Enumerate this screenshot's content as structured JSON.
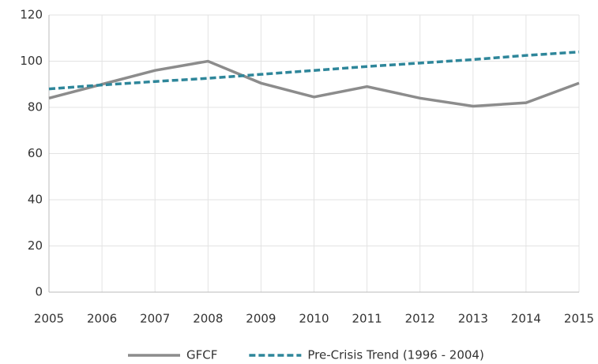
{
  "chart_data": {
    "type": "line",
    "x": [
      2005,
      2006,
      2007,
      2008,
      2009,
      2010,
      2011,
      2012,
      2013,
      2014,
      2015
    ],
    "series": [
      {
        "name": "GFCF",
        "color": "#8c8c8c",
        "dashed": false,
        "values": [
          84,
          90,
          96,
          100,
          90.5,
          84.5,
          89,
          84,
          80.5,
          82,
          90.5
        ]
      },
      {
        "name": "Pre-Crisis Trend (1996 - 2004)",
        "color": "#2e869a",
        "dashed": true,
        "values": [
          88,
          89.7,
          91.2,
          92.6,
          94.3,
          96,
          97.7,
          99.2,
          100.7,
          102.5,
          104
        ]
      }
    ],
    "xlim": [
      2005,
      2015
    ],
    "xticks": [
      2005,
      2006,
      2007,
      2008,
      2009,
      2010,
      2011,
      2012,
      2013,
      2014,
      2015
    ],
    "ylim": [
      0,
      120
    ],
    "yticks": [
      0,
      20,
      40,
      60,
      80,
      100,
      120
    ],
    "grid": true,
    "legend": "bottom"
  }
}
